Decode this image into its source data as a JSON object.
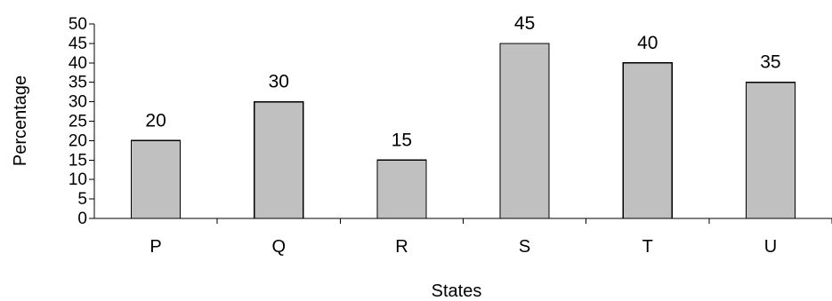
{
  "chart_data": {
    "type": "bar",
    "categories": [
      "P",
      "Q",
      "R",
      "S",
      "T",
      "U"
    ],
    "values": [
      20,
      30,
      15,
      45,
      40,
      35
    ],
    "data_labels": [
      "20",
      "30",
      "15",
      "45",
      "40",
      "35"
    ],
    "xlabel": "States",
    "ylabel": "Percentage",
    "ylim": [
      0,
      50
    ],
    "yticks": [
      "0",
      "5",
      "10",
      "15",
      "20",
      "25",
      "30",
      "35",
      "40",
      "45",
      "50"
    ],
    "grid": false,
    "legend": "none",
    "bar_color": "#c0c0c0",
    "edge_color": "#000000"
  }
}
